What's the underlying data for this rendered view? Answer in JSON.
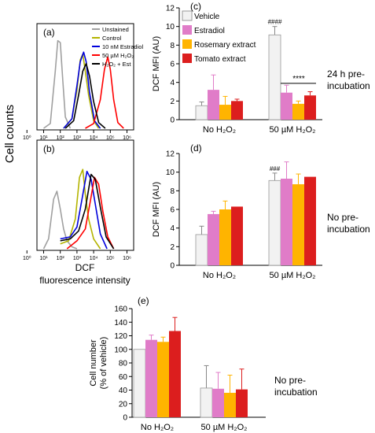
{
  "figure": {
    "cell_counts_label": "Cell counts",
    "dcf_label_line1": "DCF",
    "dcf_label_line2": "fluorescence intensity",
    "note_c_line1": "24 h pre-",
    "note_c_line2": "incubation",
    "note_d_line1": "No pre-",
    "note_d_line2": "incubation",
    "note_e_line1": "No pre-",
    "note_e_line2": "incubation"
  },
  "colors": {
    "vehicle": "#f2f2f2",
    "estradiol": "#e07cc8",
    "rosemary": "#ffb400",
    "tomato": "#dc1e1e",
    "unstained": "#a0a0a0",
    "control": "#b4b400",
    "estradiol_line": "#0000dc",
    "h2o2_line": "#ff0000",
    "h2o2_est_line": "#000000"
  },
  "chart_data": [
    {
      "type": "line",
      "panel": "(a)",
      "x_ticks": [
        "10⁰",
        "10¹",
        "10²",
        "10³",
        "10⁴",
        "10⁵",
        "10⁶"
      ],
      "legend": [
        "Unstained",
        "Control",
        "10 nM Estradiol",
        "50 µM H₂O₂",
        "H₂O₂ + Est"
      ],
      "series": [
        {
          "name": "Unstained",
          "x": [
            1.0,
            1.4,
            1.7,
            1.85,
            2.0,
            2.15,
            2.3,
            2.6
          ],
          "y": [
            0.0,
            0.05,
            0.6,
            0.92,
            0.9,
            0.5,
            0.12,
            0.0
          ]
        },
        {
          "name": "Control",
          "x": [
            2.2,
            2.7,
            3.0,
            3.2,
            3.35,
            3.5,
            3.7,
            4.0,
            4.3
          ],
          "y": [
            0.0,
            0.1,
            0.4,
            0.72,
            0.78,
            0.6,
            0.35,
            0.08,
            0.0
          ]
        },
        {
          "name": "10 nM Estradiol",
          "x": [
            2.2,
            2.7,
            3.0,
            3.2,
            3.4,
            3.55,
            3.75,
            4.05,
            4.4
          ],
          "y": [
            0.0,
            0.1,
            0.45,
            0.7,
            0.8,
            0.7,
            0.38,
            0.08,
            0.0
          ]
        },
        {
          "name": "50 µM H₂O₂",
          "x": [
            3.5,
            4.0,
            4.4,
            4.65,
            4.85,
            5.0,
            5.2,
            5.45,
            5.8
          ],
          "y": [
            0.0,
            0.05,
            0.3,
            0.62,
            0.75,
            0.62,
            0.3,
            0.06,
            0.0
          ]
        },
        {
          "name": "H₂O₂ + Est",
          "x": [
            2.3,
            2.8,
            3.1,
            3.35,
            3.55,
            3.75,
            4.0,
            4.3,
            4.7
          ],
          "y": [
            0.0,
            0.08,
            0.35,
            0.6,
            0.68,
            0.55,
            0.28,
            0.06,
            0.0
          ]
        }
      ]
    },
    {
      "type": "line",
      "panel": "(b)",
      "x_ticks": [
        "10⁰",
        "10¹",
        "10²",
        "10³",
        "10⁴",
        "10⁵",
        "10⁶"
      ],
      "series": [
        {
          "name": "Unstained",
          "x": [
            1.0,
            1.3,
            1.6,
            1.8,
            2.0,
            2.2,
            2.4,
            2.7,
            3.0
          ],
          "y": [
            0.0,
            0.1,
            0.5,
            0.58,
            0.4,
            0.2,
            0.08,
            0.02,
            0.0
          ]
        },
        {
          "name": "Control",
          "x": [
            2.0,
            2.5,
            2.9,
            3.15,
            3.35,
            3.5,
            3.7,
            4.0,
            4.4
          ],
          "y": [
            0.05,
            0.08,
            0.3,
            0.72,
            0.8,
            0.55,
            0.3,
            0.1,
            0.0
          ]
        },
        {
          "name": "10 nM Estradiol",
          "x": [
            2.0,
            2.6,
            3.0,
            3.3,
            3.6,
            3.85,
            4.1,
            4.4,
            4.8
          ],
          "y": [
            0.1,
            0.12,
            0.22,
            0.5,
            0.78,
            0.7,
            0.45,
            0.15,
            0.0
          ]
        },
        {
          "name": "50 µM H₂O₂",
          "x": [
            2.4,
            3.0,
            3.5,
            3.8,
            4.05,
            4.3,
            4.55,
            4.85,
            5.2
          ],
          "y": [
            0.0,
            0.08,
            0.2,
            0.48,
            0.72,
            0.65,
            0.38,
            0.12,
            0.0
          ]
        },
        {
          "name": "H₂O₂ + Est",
          "x": [
            2.0,
            2.6,
            3.1,
            3.5,
            3.85,
            4.1,
            4.4,
            4.75,
            5.2
          ],
          "y": [
            0.08,
            0.1,
            0.18,
            0.4,
            0.75,
            0.7,
            0.42,
            0.12,
            0.0
          ]
        }
      ]
    },
    {
      "type": "bar",
      "panel": "(c)",
      "ylabel": "DCF MFI (AU)",
      "ylim": [
        0,
        12
      ],
      "y_ticks": [
        0,
        2,
        4,
        6,
        8,
        10,
        12
      ],
      "categories": [
        "No H₂O₂",
        "50 µM H₂O₂"
      ],
      "legend": [
        "Vehicle",
        "Estradiol",
        "Rosemary extract",
        "Tomato extract"
      ],
      "series": [
        {
          "name": "Vehicle",
          "values": [
            1.5,
            9.1
          ],
          "errors": [
            0.4,
            0.9
          ]
        },
        {
          "name": "Estradiol",
          "values": [
            3.2,
            2.9
          ],
          "errors": [
            1.6,
            0.8
          ]
        },
        {
          "name": "Rosemary extract",
          "values": [
            1.6,
            1.7
          ],
          "errors": [
            0.9,
            0.3
          ]
        },
        {
          "name": "Tomato extract",
          "values": [
            2.0,
            2.6
          ],
          "errors": [
            0.2,
            0.4
          ]
        }
      ],
      "annotations": [
        "####",
        "****"
      ]
    },
    {
      "type": "bar",
      "panel": "(d)",
      "ylabel": "DCF MFI (AU)",
      "ylim": [
        0,
        12
      ],
      "y_ticks": [
        0,
        2,
        4,
        6,
        8,
        10,
        12
      ],
      "categories": [
        "No H₂O₂",
        "50 µM H₂O₂"
      ],
      "series": [
        {
          "name": "Vehicle",
          "values": [
            3.3,
            9.1
          ],
          "errors": [
            0.9,
            0.8
          ]
        },
        {
          "name": "Estradiol",
          "values": [
            5.5,
            9.3
          ],
          "errors": [
            0.3,
            1.8
          ]
        },
        {
          "name": "Rosemary extract",
          "values": [
            6.0,
            8.7
          ],
          "errors": [
            0.9,
            1.1
          ]
        },
        {
          "name": "Tomato extract",
          "values": [
            6.3,
            9.5
          ],
          "errors": [
            0.0,
            0.0
          ]
        }
      ],
      "annotations": [
        "###"
      ]
    },
    {
      "type": "bar",
      "panel": "(e)",
      "ylabel": "Cell number (% of vehicle)",
      "ylim": [
        0,
        160
      ],
      "y_ticks": [
        0,
        20,
        40,
        60,
        80,
        100,
        120,
        140,
        160
      ],
      "categories": [
        "No H₂O₂",
        "50 µM H₂O₂"
      ],
      "series": [
        {
          "name": "Vehicle",
          "values": [
            100,
            43
          ],
          "errors": [
            0,
            33
          ]
        },
        {
          "name": "Estradiol",
          "values": [
            114,
            42
          ],
          "errors": [
            7,
            24
          ]
        },
        {
          "name": "Rosemary extract",
          "values": [
            111,
            36
          ],
          "errors": [
            7,
            26
          ]
        },
        {
          "name": "Tomato extract",
          "values": [
            127,
            41
          ],
          "errors": [
            20,
            30
          ]
        }
      ]
    }
  ]
}
